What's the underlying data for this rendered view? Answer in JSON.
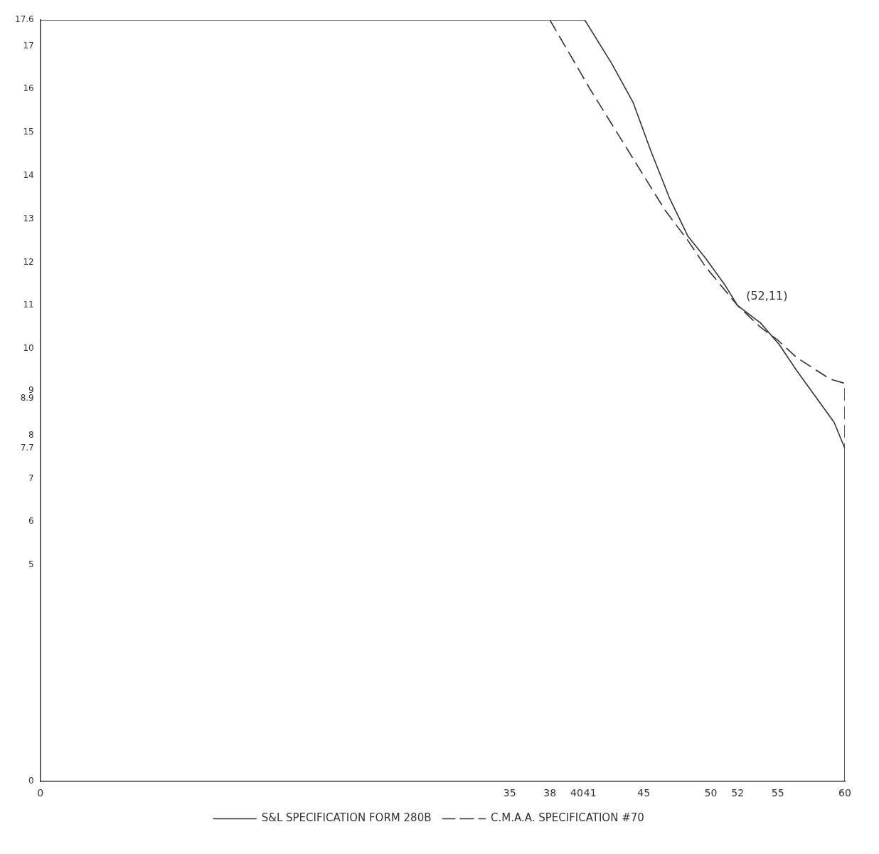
{
  "chart_data": {
    "type": "line",
    "xlim": [
      0,
      60
    ],
    "xticks": [
      0,
      35,
      38,
      40,
      41,
      45,
      50,
      52,
      55,
      60
    ],
    "ylim": [
      0,
      17.6
    ],
    "yticks": [
      0,
      5,
      6,
      7,
      7.7,
      8,
      8.9,
      9,
      10,
      11,
      12,
      13,
      14,
      15,
      16,
      17,
      17.6
    ],
    "grid": false,
    "legend": "bottom",
    "marker": "none",
    "series": [
      {
        "name": "S&L SPECIFICATION FORM 280B",
        "color": "#333333",
        "line_style": "solid",
        "x": [
          0,
          40.6,
          42.6,
          44.2,
          45.5,
          46.9,
          48.3,
          49.6,
          51,
          52,
          53.7,
          55.1,
          56.4,
          57.8,
          59.2,
          60,
          60
        ],
        "values": [
          17.6,
          17.6,
          16.6,
          15.7,
          14.6,
          13.5,
          12.6,
          12.1,
          11.5,
          11,
          10.6,
          10.1,
          9.5,
          8.9,
          8.3,
          7.7,
          0
        ]
      },
      {
        "name": "C.M.A.A. SPECIFICATION #70",
        "color": "#333333",
        "line_style": "dashed",
        "x": [
          38,
          41,
          45,
          46.6,
          48.3,
          49.6,
          52,
          53.7,
          55,
          56.4,
          58.9,
          60,
          60
        ],
        "values": [
          17.6,
          16,
          14,
          13.2,
          12.5,
          11.9,
          11,
          10.5,
          10.2,
          9.8,
          9.3,
          9.2,
          7.7
        ]
      }
    ],
    "annotations": [
      {
        "text": "(52,11)",
        "x": 52,
        "y": 11
      }
    ]
  }
}
